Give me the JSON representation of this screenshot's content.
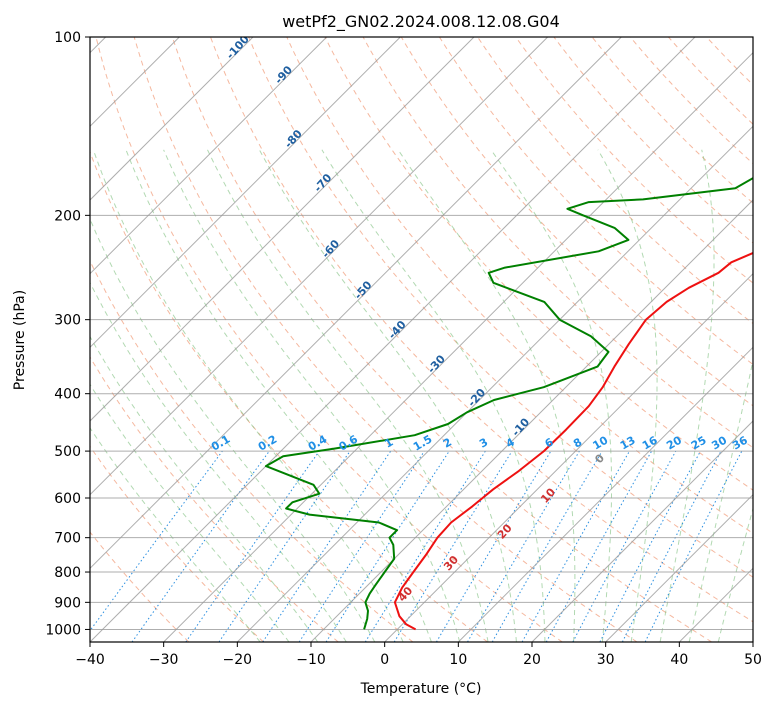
{
  "chart_data": {
    "type": "line",
    "title": "wetPf2_GN02.2024.008.12.08.G04",
    "xlabel": "Temperature (°C)",
    "ylabel": "Pressure (hPa)",
    "xlim": [
      -40,
      50
    ],
    "ylim": [
      1050,
      100
    ],
    "y_scale": "log",
    "skew": "skew-T log-P diagram",
    "x_ticks": [
      -40,
      -30,
      -20,
      -10,
      0,
      10,
      20,
      30,
      40,
      50
    ],
    "y_ticks": [
      1000,
      900,
      800,
      700,
      600,
      500,
      400,
      300,
      200,
      100
    ],
    "grid": true,
    "series": [
      {
        "color": "#ee1111",
        "points": [
          [
            1000,
            2.5
          ],
          [
            980,
            0.5
          ],
          [
            950,
            -1.5
          ],
          [
            900,
            -4
          ],
          [
            850,
            -5
          ],
          [
            800,
            -5.6
          ],
          [
            750,
            -6.2
          ],
          [
            700,
            -7
          ],
          [
            660,
            -7.2
          ],
          [
            620,
            -6.5
          ],
          [
            580,
            -6
          ],
          [
            540,
            -5
          ],
          [
            500,
            -4.3
          ],
          [
            460,
            -4.2
          ],
          [
            420,
            -4.3
          ],
          [
            390,
            -5
          ],
          [
            360,
            -6.2
          ],
          [
            330,
            -7.3
          ],
          [
            300,
            -8.3
          ],
          [
            280,
            -7.9
          ],
          [
            265,
            -6.8
          ],
          [
            250,
            -4.8
          ],
          [
            240,
            -4.5
          ],
          [
            230,
            -2.5
          ],
          [
            215,
            1
          ],
          [
            200,
            5
          ],
          [
            180,
            10
          ],
          [
            160,
            14
          ],
          [
            150,
            17
          ],
          [
            130,
            21
          ],
          [
            115,
            23
          ],
          [
            100,
            26
          ]
        ]
      },
      {
        "color": "#008000",
        "points": [
          [
            1000,
            -4.5
          ],
          [
            960,
            -5.5
          ],
          [
            930,
            -6.5
          ],
          [
            900,
            -8
          ],
          [
            870,
            -8.6
          ],
          [
            840,
            -9
          ],
          [
            800,
            -9.5
          ],
          [
            760,
            -10
          ],
          [
            720,
            -12
          ],
          [
            700,
            -13.5
          ],
          [
            680,
            -13.5
          ],
          [
            660,
            -17
          ],
          [
            640,
            -27.5
          ],
          [
            625,
            -31.5
          ],
          [
            610,
            -31.5
          ],
          [
            590,
            -29
          ],
          [
            570,
            -31
          ],
          [
            530,
            -40
          ],
          [
            510,
            -39
          ],
          [
            495,
            -33
          ],
          [
            470,
            -24
          ],
          [
            450,
            -21
          ],
          [
            430,
            -20
          ],
          [
            410,
            -18
          ],
          [
            390,
            -13
          ],
          [
            360,
            -8.5
          ],
          [
            340,
            -9
          ],
          [
            320,
            -13.5
          ],
          [
            300,
            -20
          ],
          [
            280,
            -24.5
          ],
          [
            260,
            -34
          ],
          [
            250,
            -36
          ],
          [
            245,
            -34.5
          ],
          [
            230,
            -24
          ],
          [
            220,
            -21.5
          ],
          [
            210,
            -25
          ],
          [
            200,
            -31
          ],
          [
            195,
            -34
          ],
          [
            190,
            -32
          ],
          [
            188,
            -25
          ],
          [
            180,
            -14
          ],
          [
            170,
            -12.5
          ],
          [
            160,
            -12
          ],
          [
            150,
            -11
          ],
          [
            140,
            -10
          ],
          [
            120,
            -8
          ],
          [
            110,
            -6.5
          ],
          [
            100,
            -5
          ]
        ]
      }
    ],
    "dry_adiabat_labels": [
      "-100",
      "-90",
      "-80",
      "-70",
      "-60",
      "-50",
      "-40",
      "-30",
      "-20",
      "-10"
    ],
    "moist_adiabat_labels": [
      "0",
      "10",
      "20",
      "30",
      "40"
    ],
    "mixing_ratio_labels": [
      "0.1",
      "0.2",
      "0.4",
      "0.6",
      "1",
      "1.5",
      "2",
      "3",
      "4",
      "6",
      "8",
      "10",
      "13",
      "16",
      "20",
      "25",
      "30",
      "36"
    ]
  }
}
